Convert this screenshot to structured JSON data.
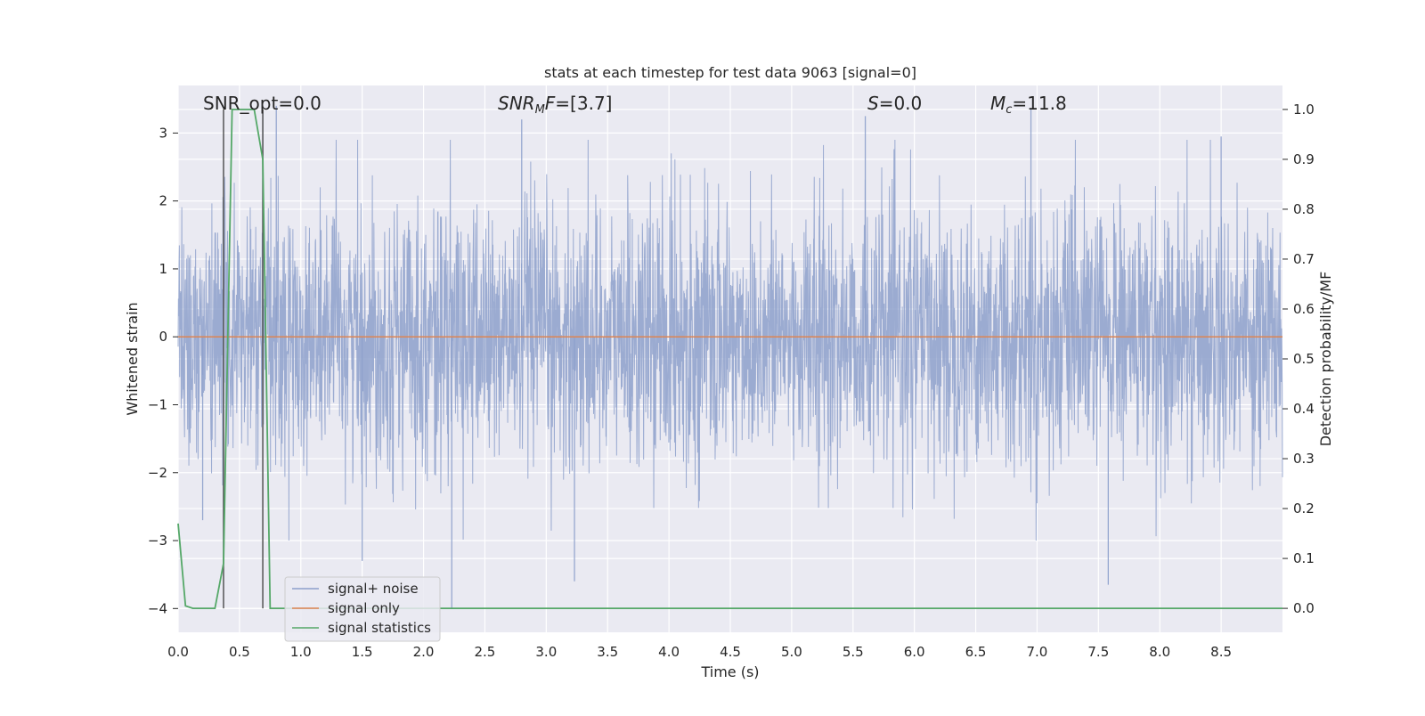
{
  "chart_data": {
    "type": "line",
    "title": "stats at each timestep for test data 9063 [signal=0]",
    "xlabel": "Time (s)",
    "ylabel": "Whitened strain",
    "y2label": "Detection probability/MF",
    "xlim": [
      0.0,
      9.0
    ],
    "ylim": [
      -4.35,
      3.7
    ],
    "y2lim": [
      -0.048,
      1.048
    ],
    "xticks": [
      0.0,
      0.5,
      1.0,
      1.5,
      2.0,
      2.5,
      3.0,
      3.5,
      4.0,
      4.5,
      5.0,
      5.5,
      6.0,
      6.5,
      7.0,
      7.5,
      8.0,
      8.5
    ],
    "yticks": [
      -4,
      -3,
      -2,
      -1,
      0,
      1,
      2,
      3
    ],
    "y2ticks": [
      0.0,
      0.1,
      0.2,
      0.3,
      0.4,
      0.5,
      0.6,
      0.7,
      0.8,
      0.9,
      1.0
    ],
    "grid": true,
    "legend_position": "lower-left",
    "colors": {
      "background": "#eaeaf2",
      "grid": "#ffffff",
      "noise": "#8da0cb",
      "signal": "#dd8452",
      "stats": "#55a868",
      "vline": "#555555"
    },
    "annotations": {
      "snr_opt": "SNR_opt=0.0",
      "snr_mf_prefix": "SNR",
      "snr_mf_sub": "M",
      "snr_mf_italic": "F",
      "snr_mf_value": "=[3.7]",
      "s_label": "S",
      "s_value": "=0.0",
      "mc_label": "M",
      "mc_sub": "c",
      "mc_value": "=11.8"
    },
    "vertical_lines_x": [
      0.37,
      0.69
    ],
    "series": [
      {
        "name": "signal+ noise",
        "axis": "left",
        "duration": 9.0,
        "rms": 1.0,
        "sample_spikes": [
          {
            "x": 0.2,
            "y": -2.7
          },
          {
            "x": 0.37,
            "y": -3.1
          },
          {
            "x": 0.69,
            "y": 3.3
          },
          {
            "x": 0.8,
            "y": 3.4
          },
          {
            "x": 1.5,
            "y": -3.3
          },
          {
            "x": 2.23,
            "y": -4.0
          },
          {
            "x": 2.8,
            "y": 3.2
          },
          {
            "x": 3.23,
            "y": -3.6
          },
          {
            "x": 5.6,
            "y": 3.25
          },
          {
            "x": 6.95,
            "y": 3.35
          },
          {
            "x": 7.58,
            "y": -3.65
          },
          {
            "x": 8.5,
            "y": 2.95
          }
        ]
      },
      {
        "name": "signal only",
        "axis": "left",
        "x": [
          0.0,
          9.0
        ],
        "y": [
          0.0,
          0.0
        ]
      },
      {
        "name": "signal statistics",
        "axis": "right",
        "x": [
          0.0,
          0.06,
          0.12,
          0.3,
          0.37,
          0.44,
          0.62,
          0.69,
          0.75,
          0.81,
          9.0
        ],
        "y": [
          0.17,
          0.005,
          0.0,
          0.0,
          0.09,
          1.0,
          1.0,
          0.9,
          0.0,
          0.0,
          0.0
        ]
      }
    ]
  }
}
